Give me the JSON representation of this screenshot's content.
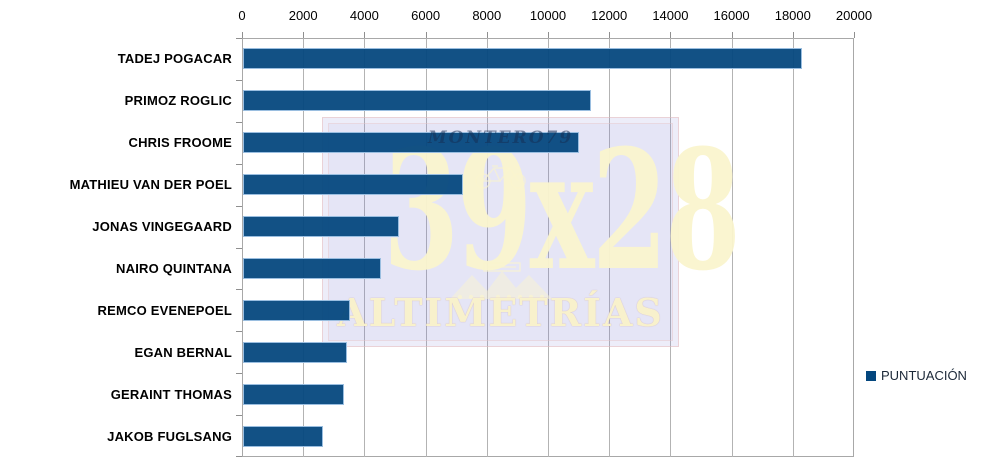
{
  "chart_data": {
    "type": "bar",
    "orientation": "horizontal",
    "title": "",
    "categories": [
      "TADEJ POGACAR",
      "PRIMOZ ROGLIC",
      "CHRIS FROOME",
      "MATHIEU VAN DER POEL",
      "JONAS VINGEGAARD",
      "NAIRO QUINTANA",
      "REMCO EVENEPOEL",
      "EGAN BERNAL",
      "GERAINT THOMAS",
      "JAKOB FUGLSANG"
    ],
    "series": [
      {
        "name": "PUNTUACIÓN",
        "values": [
          18250,
          11350,
          10950,
          7150,
          5050,
          4450,
          3450,
          3340,
          3260,
          2570
        ]
      }
    ],
    "xlabel": "",
    "ylabel": "",
    "xlim": [
      0,
      20000
    ],
    "x_ticks": [
      0,
      2000,
      4000,
      6000,
      8000,
      10000,
      12000,
      14000,
      16000,
      18000,
      20000
    ],
    "grid": true,
    "legend_position": "right",
    "bar_color": "#04477e",
    "bar_border_color": "#a2c4e5",
    "gridline_color": "#b3b3b3"
  },
  "legend": {
    "label": "PUNTUACIÓN",
    "swatch_color": "#04477e"
  },
  "watermark": {
    "author": "MONTERO79",
    "brand": "39x28",
    "subtitle": "ALTIMETRÍAS",
    "background_color": "#e6e6f5",
    "text_color": "#faf4cd"
  }
}
